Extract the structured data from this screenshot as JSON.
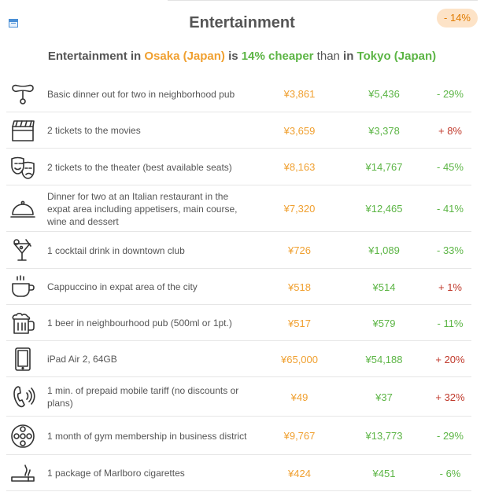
{
  "header": {
    "title": "Entertainment",
    "badge": "- 14%"
  },
  "summary": {
    "prefix": "Entertainment in ",
    "city1": "Osaka (Japan)",
    "is": " is ",
    "pct": "14%",
    "cheaper": " cheaper",
    "than": " than ",
    "in": "in ",
    "city2": "Tokyo (Japan)"
  },
  "rows": [
    {
      "icon": "sausage-icon",
      "desc": "Basic dinner out for two in neighborhood pub",
      "p1": "¥3,861",
      "p2": "¥5,436",
      "diff": "- 29%",
      "sign": "neg"
    },
    {
      "icon": "clapperboard-icon",
      "desc": "2 tickets to the movies",
      "p1": "¥3,659",
      "p2": "¥3,378",
      "diff": "+ 8%",
      "sign": "pos"
    },
    {
      "icon": "theater-masks-icon",
      "desc": "2 tickets to the theater (best available seats)",
      "p1": "¥8,163",
      "p2": "¥14,767",
      "diff": "- 45%",
      "sign": "neg"
    },
    {
      "icon": "cloche-icon",
      "desc": "Dinner for two at an Italian restaurant in the expat area including appetisers, main course, wine and dessert",
      "p1": "¥7,320",
      "p2": "¥12,465",
      "diff": "- 41%",
      "sign": "neg"
    },
    {
      "icon": "cocktail-icon",
      "desc": "1 cocktail drink in downtown club",
      "p1": "¥726",
      "p2": "¥1,089",
      "diff": "- 33%",
      "sign": "neg"
    },
    {
      "icon": "coffee-cup-icon",
      "desc": "Cappuccino in expat area of the city",
      "p1": "¥518",
      "p2": "¥514",
      "diff": "+ 1%",
      "sign": "pos"
    },
    {
      "icon": "beer-mug-icon",
      "desc": "1 beer in neighbourhood pub (500ml or 1pt.)",
      "p1": "¥517",
      "p2": "¥579",
      "diff": "- 11%",
      "sign": "neg"
    },
    {
      "icon": "tablet-icon",
      "desc": "iPad Air 2, 64GB",
      "p1": "¥65,000",
      "p2": "¥54,188",
      "diff": "+ 20%",
      "sign": "pos"
    },
    {
      "icon": "phone-ringing-icon",
      "desc": "1 min. of prepaid mobile tariff (no discounts or plans)",
      "p1": "¥49",
      "p2": "¥37",
      "diff": "+ 32%",
      "sign": "pos"
    },
    {
      "icon": "gym-weight-icon",
      "desc": "1 month of gym membership in business district",
      "p1": "¥9,767",
      "p2": "¥13,773",
      "diff": "- 29%",
      "sign": "neg"
    },
    {
      "icon": "cigarette-icon",
      "desc": "1 package of Marlboro cigarettes",
      "p1": "¥424",
      "p2": "¥451",
      "diff": "- 6%",
      "sign": "neg"
    }
  ]
}
